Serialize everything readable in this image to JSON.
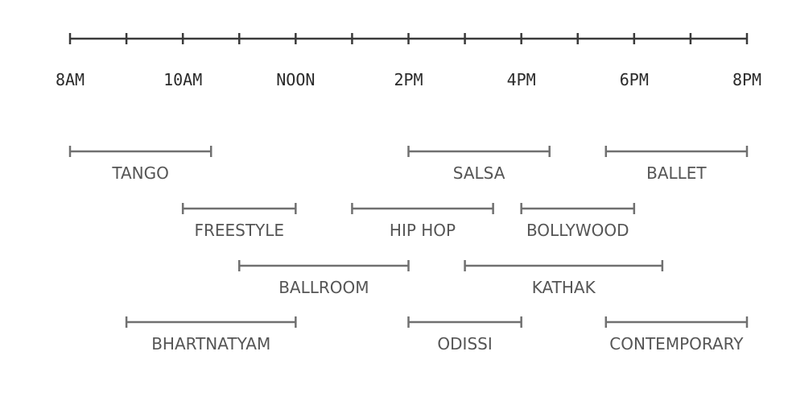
{
  "timeline": {
    "ticks": [
      {
        "t": 8,
        "label": "8AM"
      },
      {
        "t": 9,
        "label": ""
      },
      {
        "t": 10,
        "label": "10AM"
      },
      {
        "t": 11,
        "label": ""
      },
      {
        "t": 12,
        "label": "NOON"
      },
      {
        "t": 13,
        "label": ""
      },
      {
        "t": 14,
        "label": "2PM"
      },
      {
        "t": 15,
        "label": ""
      },
      {
        "t": 16,
        "label": "4PM"
      },
      {
        "t": 17,
        "label": ""
      },
      {
        "t": 18,
        "label": "6PM"
      },
      {
        "t": 19,
        "label": ""
      },
      {
        "t": 20,
        "label": "8PM"
      }
    ],
    "range": [
      8,
      20
    ]
  },
  "classes": [
    {
      "name": "TANGO",
      "start": 8,
      "end": 10.5,
      "row": 0
    },
    {
      "name": "SALSA",
      "start": 14,
      "end": 16.5,
      "row": 0
    },
    {
      "name": "BALLET",
      "start": 17.5,
      "end": 20,
      "row": 0
    },
    {
      "name": "FREESTYLE",
      "start": 10,
      "end": 12,
      "row": 1
    },
    {
      "name": "HIP HOP",
      "start": 13,
      "end": 15.5,
      "row": 1
    },
    {
      "name": "BOLLYWOOD",
      "start": 16,
      "end": 18,
      "row": 1
    },
    {
      "name": "BALLROOM",
      "start": 11,
      "end": 14,
      "row": 2
    },
    {
      "name": "KATHAK",
      "start": 15,
      "end": 18.5,
      "row": 2
    },
    {
      "name": "BHARTNATYAM",
      "start": 9,
      "end": 12,
      "row": 3
    },
    {
      "name": "ODISSI",
      "start": 14,
      "end": 16,
      "row": 3
    },
    {
      "name": "CONTEMPORARY",
      "start": 17.5,
      "end": 20,
      "row": 3
    }
  ]
}
